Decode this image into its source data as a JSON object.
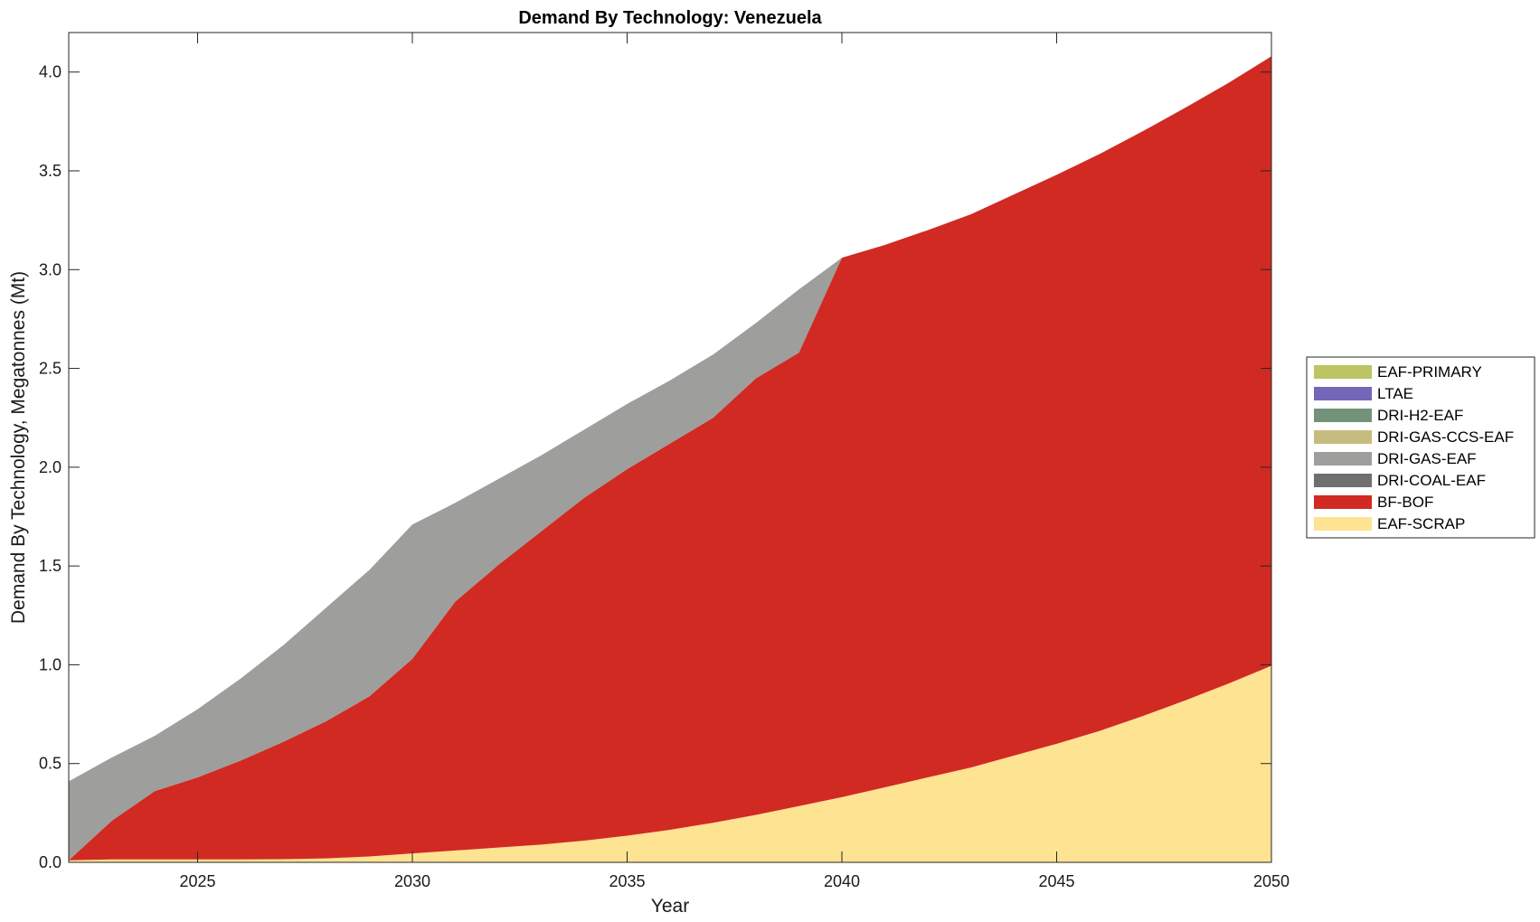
{
  "chart_data": {
    "type": "area",
    "stacked": true,
    "title": "Demand By Technology: Venezuela",
    "xlabel": "Year",
    "ylabel": "Demand By Technology, Megatonnes (Mt)",
    "xlim": [
      2022,
      2050
    ],
    "ylim": [
      0,
      4.2
    ],
    "xticks": [
      2025,
      2030,
      2035,
      2040,
      2045,
      2050
    ],
    "yticks": [
      0,
      0.5,
      1,
      1.5,
      2,
      2.5,
      3,
      3.5,
      4
    ],
    "ytick_labels": [
      "0.0",
      "0.5",
      "1.0",
      "1.5",
      "2.0",
      "2.5",
      "3.0",
      "3.5",
      "4.0"
    ],
    "grid": false,
    "legend_position": "right",
    "x": [
      2022,
      2023,
      2024,
      2025,
      2026,
      2027,
      2028,
      2029,
      2030,
      2031,
      2032,
      2033,
      2034,
      2035,
      2036,
      2037,
      2038,
      2039,
      2040,
      2041,
      2042,
      2043,
      2044,
      2045,
      2046,
      2047,
      2048,
      2049,
      2050
    ],
    "series": [
      {
        "name": "EAF-SCRAP",
        "color": "#fde392",
        "values": [
          0.01,
          0.015,
          0.015,
          0.015,
          0.015,
          0.016,
          0.02,
          0.03,
          0.045,
          0.06,
          0.075,
          0.09,
          0.11,
          0.135,
          0.165,
          0.2,
          0.24,
          0.285,
          0.33,
          0.38,
          0.43,
          0.48,
          0.54,
          0.6,
          0.665,
          0.74,
          0.82,
          0.905,
          0.995
        ]
      },
      {
        "name": "BF-BOF",
        "color": "#d12a23",
        "values": [
          0.0,
          0.195,
          0.345,
          0.415,
          0.5,
          0.594,
          0.695,
          0.81,
          0.985,
          1.26,
          1.43,
          1.585,
          1.735,
          1.855,
          1.955,
          2.05,
          2.21,
          2.295,
          2.73,
          2.745,
          2.77,
          2.8,
          2.84,
          2.88,
          2.92,
          2.96,
          3.0,
          3.04,
          3.085
        ]
      },
      {
        "name": "DRI-COAL-EAF",
        "color": "#6f6f6f",
        "values": [
          0,
          0,
          0,
          0,
          0,
          0,
          0,
          0,
          0,
          0,
          0,
          0,
          0,
          0,
          0,
          0,
          0,
          0,
          0,
          0,
          0,
          0,
          0,
          0,
          0,
          0,
          0,
          0,
          0
        ]
      },
      {
        "name": "DRI-GAS-EAF",
        "color": "#9e9e9c",
        "values": [
          0.4,
          0.32,
          0.28,
          0.345,
          0.415,
          0.49,
          0.575,
          0.64,
          0.68,
          0.5,
          0.435,
          0.385,
          0.345,
          0.33,
          0.32,
          0.32,
          0.28,
          0.32,
          0.0,
          0,
          0,
          0,
          0,
          0,
          0,
          0,
          0,
          0,
          0
        ]
      },
      {
        "name": "DRI-GAS-CCS-EAF",
        "color": "#c7bc7f",
        "values": [
          0,
          0,
          0,
          0,
          0,
          0,
          0,
          0,
          0,
          0,
          0,
          0,
          0,
          0,
          0,
          0,
          0,
          0,
          0,
          0,
          0,
          0,
          0,
          0,
          0,
          0,
          0,
          0,
          0
        ]
      },
      {
        "name": "DRI-H2-EAF",
        "color": "#72937a",
        "values": [
          0,
          0,
          0,
          0,
          0,
          0,
          0,
          0,
          0,
          0,
          0,
          0,
          0,
          0,
          0,
          0,
          0,
          0,
          0,
          0,
          0,
          0,
          0,
          0,
          0,
          0,
          0,
          0,
          0
        ]
      },
      {
        "name": "LTAE",
        "color": "#7466b8",
        "values": [
          0,
          0,
          0,
          0,
          0,
          0,
          0,
          0,
          0,
          0,
          0,
          0,
          0,
          0,
          0,
          0,
          0,
          0,
          0,
          0,
          0,
          0,
          0,
          0,
          0,
          0,
          0,
          0,
          0
        ]
      },
      {
        "name": "EAF-PRIMARY",
        "color": "#bcc464",
        "values": [
          0,
          0,
          0,
          0,
          0,
          0,
          0,
          0,
          0,
          0,
          0,
          0,
          0,
          0,
          0,
          0,
          0,
          0,
          0,
          0,
          0,
          0,
          0,
          0,
          0,
          0,
          0,
          0,
          0
        ]
      }
    ],
    "legend_order": [
      "EAF-PRIMARY",
      "LTAE",
      "DRI-H2-EAF",
      "DRI-GAS-CCS-EAF",
      "DRI-GAS-EAF",
      "DRI-COAL-EAF",
      "BF-BOF",
      "EAF-SCRAP"
    ]
  }
}
